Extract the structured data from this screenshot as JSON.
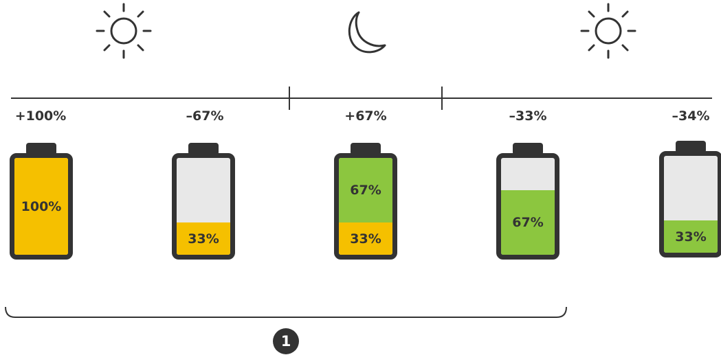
{
  "colors": {
    "dark": "#333333",
    "solar": "#f5c000",
    "battery": "#8cc63f",
    "empty": "#e8e8e8"
  },
  "icons": [
    "sun-icon",
    "moon-icon",
    "sun-icon"
  ],
  "changes": [
    "+100%",
    "–67%",
    "+67%",
    "–33%",
    "–34%"
  ],
  "batteries": [
    {
      "segments": [
        {
          "label": "100%",
          "value": 100,
          "color": "solar"
        }
      ]
    },
    {
      "segments": [
        {
          "label": "33%",
          "value": 33,
          "color": "solar"
        }
      ]
    },
    {
      "segments": [
        {
          "label": "33%",
          "value": 33,
          "color": "solar"
        },
        {
          "label": "67%",
          "value": 67,
          "color": "battery"
        }
      ]
    },
    {
      "segments": [
        {
          "label": "67%",
          "value": 67,
          "color": "battery"
        }
      ]
    },
    {
      "segments": [
        {
          "label": "33%",
          "value": 33,
          "color": "battery"
        }
      ]
    }
  ],
  "step_badge": "1"
}
